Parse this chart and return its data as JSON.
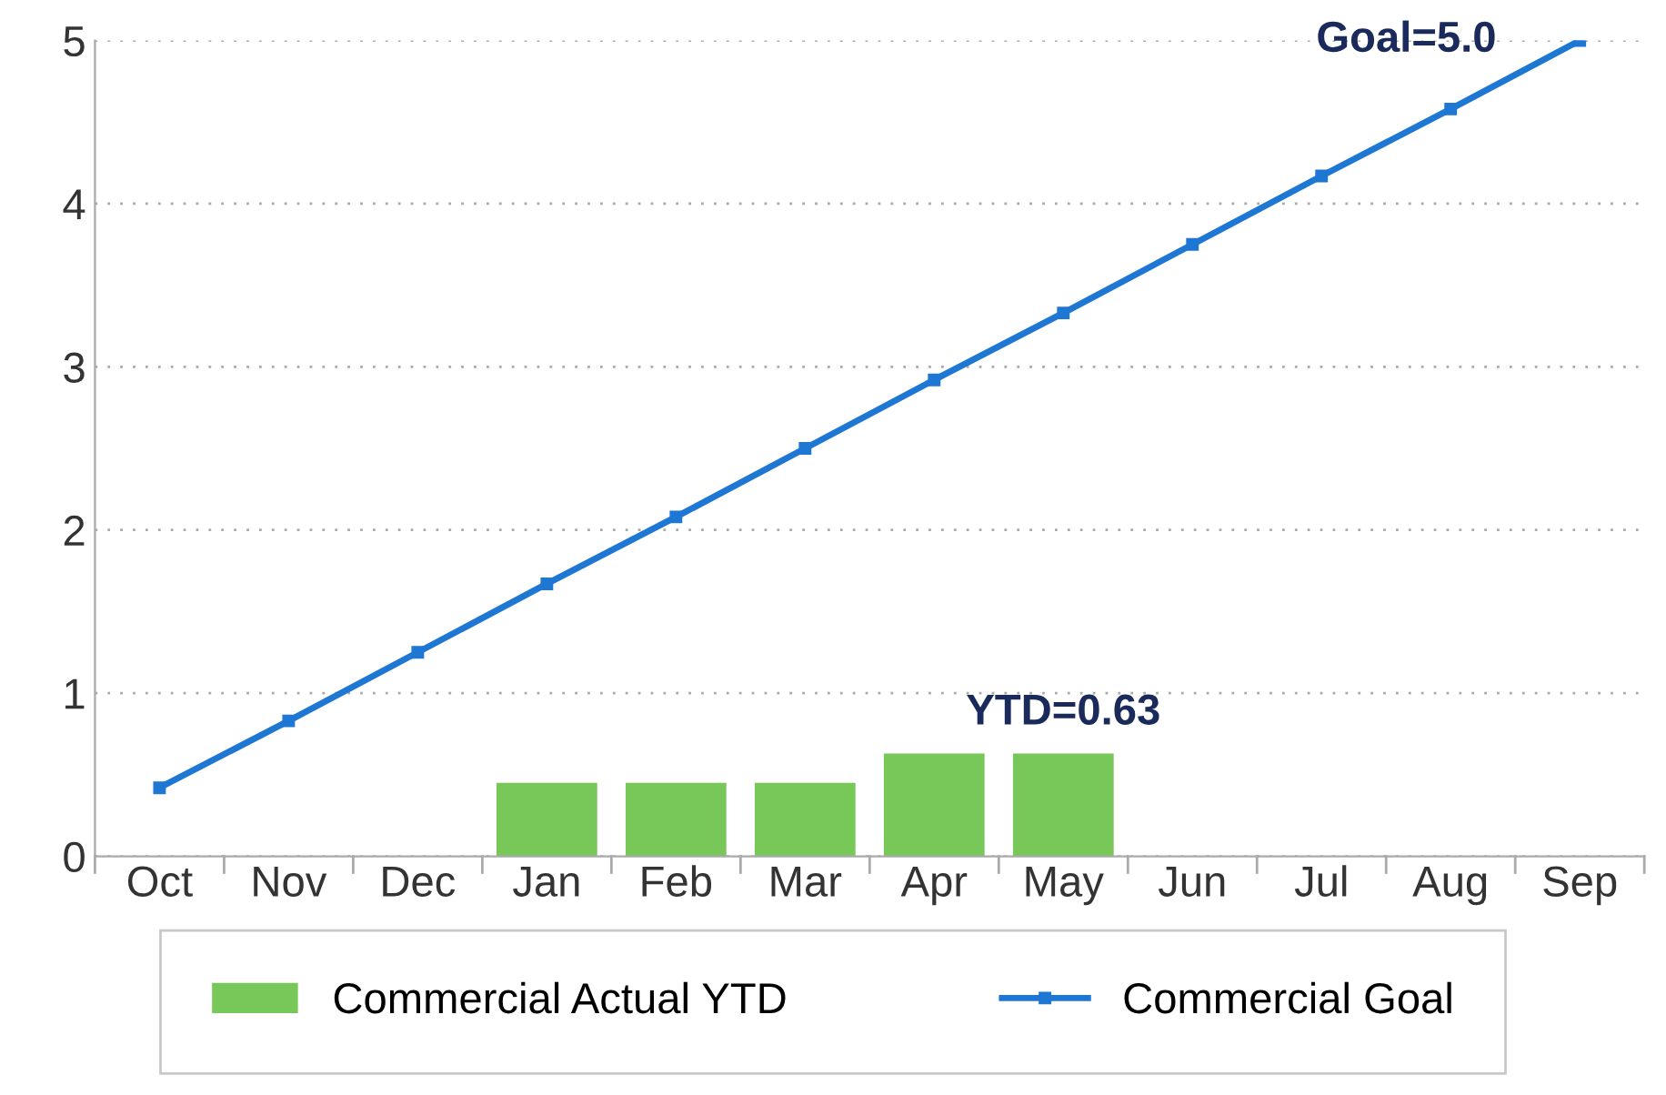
{
  "chart_data": {
    "type": "bar",
    "categories": [
      "Oct",
      "Nov",
      "Dec",
      "Jan",
      "Feb",
      "Mar",
      "Apr",
      "May",
      "Jun",
      "Jul",
      "Aug",
      "Sep"
    ],
    "series": [
      {
        "name": "Commercial Actual YTD",
        "color": "#77c759",
        "values": [
          null,
          null,
          null,
          0.45,
          0.45,
          0.45,
          0.63,
          0.63,
          null,
          null,
          null,
          null
        ]
      },
      {
        "name": "Commercial Goal",
        "type": "line",
        "color": "#1f77d4",
        "values": [
          0.42,
          0.83,
          1.25,
          1.67,
          2.08,
          2.5,
          2.92,
          3.33,
          3.75,
          4.17,
          4.58,
          5.0
        ]
      }
    ],
    "ylim": [
      0,
      5
    ],
    "yticks": [
      0,
      1,
      2,
      3,
      4,
      5
    ],
    "grid": "y",
    "legend": "bottom",
    "marker": "square",
    "line_style": "solid",
    "annotations": [
      {
        "text": "Goal=5.0",
        "x": "Sep",
        "y": 5.0
      },
      {
        "text": "YTD=0.63",
        "x": "May",
        "y": 0.63
      }
    ]
  }
}
